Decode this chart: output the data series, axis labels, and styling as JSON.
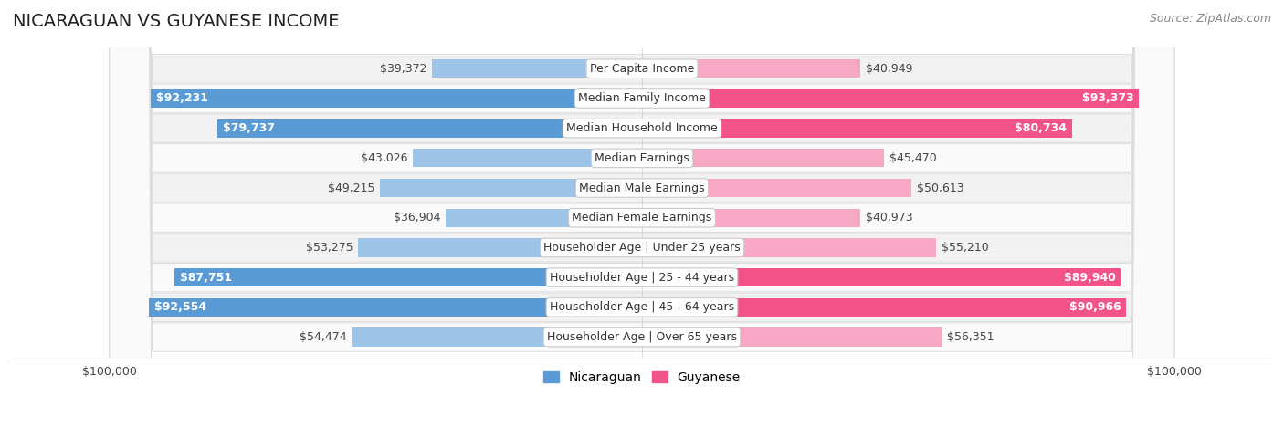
{
  "title": "NICARAGUAN VS GUYANESE INCOME",
  "source": "Source: ZipAtlas.com",
  "categories": [
    "Per Capita Income",
    "Median Family Income",
    "Median Household Income",
    "Median Earnings",
    "Median Male Earnings",
    "Median Female Earnings",
    "Householder Age | Under 25 years",
    "Householder Age | 25 - 44 years",
    "Householder Age | 45 - 64 years",
    "Householder Age | Over 65 years"
  ],
  "nicaraguan_values": [
    39372,
    92231,
    79737,
    43026,
    49215,
    36904,
    53275,
    87751,
    92554,
    54474
  ],
  "guyanese_values": [
    40949,
    93373,
    80734,
    45470,
    50613,
    40973,
    55210,
    89940,
    90966,
    56351
  ],
  "nicaraguan_labels": [
    "$39,372",
    "$92,231",
    "$79,737",
    "$43,026",
    "$49,215",
    "$36,904",
    "$53,275",
    "$87,751",
    "$92,554",
    "$54,474"
  ],
  "guyanese_labels": [
    "$40,949",
    "$93,373",
    "$80,734",
    "$45,470",
    "$50,613",
    "$40,973",
    "$55,210",
    "$89,940",
    "$90,966",
    "$56,351"
  ],
  "max_value": 100000,
  "bar_height": 0.62,
  "full_color_threshold": 75000,
  "nicaraguan_color_full": "#5B9BD5",
  "nicaraguan_color_light": "#9DC3E6",
  "guyanese_color_full": "#F4538A",
  "guyanese_color_light": "#F7A8C4",
  "background_color": "#ffffff",
  "row_bg_even": "#F2F2F2",
  "row_bg_odd": "#FAFAFA",
  "row_border_color": "#DDDDDD",
  "label_inside_color": "#ffffff",
  "label_outside_color": "#444444",
  "title_fontsize": 14,
  "source_fontsize": 9,
  "bar_label_fontsize": 9,
  "category_fontsize": 9,
  "axis_label_fontsize": 9,
  "legend_fontsize": 10
}
